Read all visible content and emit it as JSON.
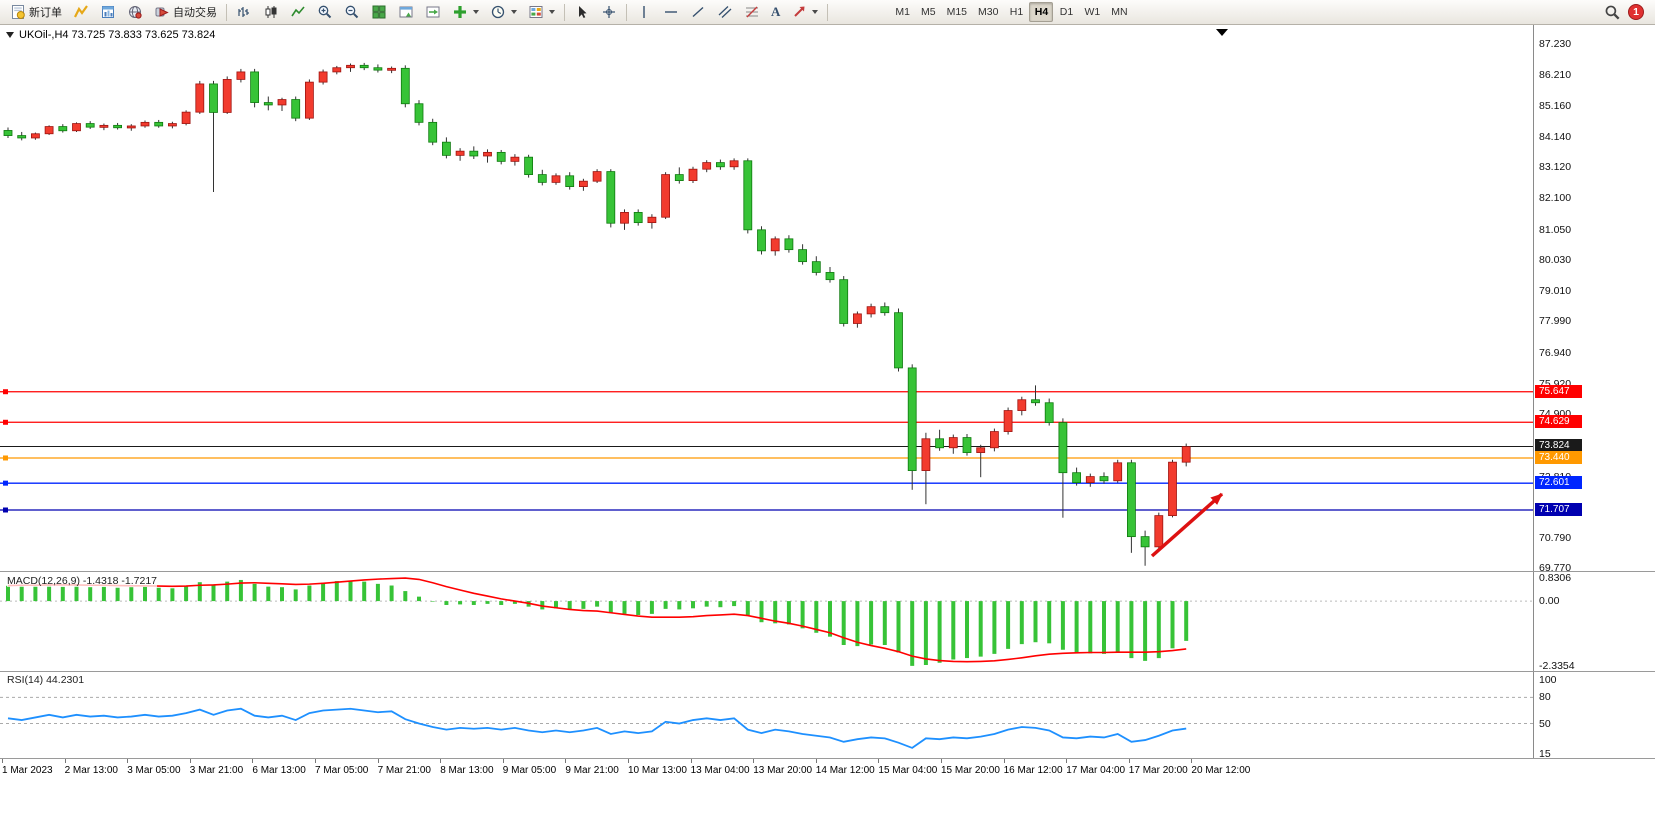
{
  "toolbar": {
    "new_order_label": "新订单",
    "auto_trading_label": "自动交易",
    "text_tool_glyph": "A",
    "timeframes": [
      "M1",
      "M5",
      "M15",
      "M30",
      "H1",
      "H4",
      "D1",
      "W1",
      "MN"
    ],
    "active_timeframe": "H4",
    "notification_count": "1"
  },
  "chart": {
    "ohlc_title": "UKOil-,H4  73.725 73.833 73.625 73.824"
  },
  "chart_data": {
    "type": "candlestick",
    "symbol": "UKOil-",
    "period": "H4",
    "ohlc": {
      "open": 73.725,
      "high": 73.833,
      "low": 73.625,
      "close": 73.824
    },
    "colors": {
      "up_fill": "#f23b2e",
      "up_stroke": "#9e1410",
      "down_fill": "#37c337",
      "down_stroke": "#0e7a0e",
      "wick": "#333333",
      "macd_hist": "#37c337",
      "macd_signal": "#ff0000",
      "rsi_line": "#1e90ff",
      "arrow": "#dd1111"
    },
    "price_axis_labels": [
      "87.230",
      "86.210",
      "85.160",
      "84.140",
      "83.120",
      "82.100",
      "81.050",
      "80.030",
      "79.010",
      "77.990",
      "76.940",
      "75.920",
      "74.900",
      "73.830",
      "72.810",
      "70.790",
      "69.770"
    ],
    "price_lines": [
      {
        "price": 75.647,
        "label": "75.647",
        "color": "#ff0000",
        "current": false
      },
      {
        "price": 74.629,
        "label": "74.629",
        "color": "#ff0000",
        "current": false
      },
      {
        "price": 73.824,
        "label": "73.824",
        "color": "#1a1a1a",
        "current": true
      },
      {
        "price": 73.44,
        "label": "73.440",
        "color": "#ff9900",
        "current": false
      },
      {
        "price": 72.601,
        "label": "72.601",
        "color": "#0026ff",
        "current": false
      },
      {
        "price": 71.707,
        "label": "71.707",
        "color": "#0000b0",
        "current": false
      }
    ],
    "time_axis_labels": [
      "1 Mar 2023",
      "2 Mar 13:00",
      "3 Mar 05:00",
      "3 Mar 21:00",
      "6 Mar 13:00",
      "7 Mar 05:00",
      "7 Mar 21:00",
      "8 Mar 13:00",
      "9 Mar 05:00",
      "9 Mar 21:00",
      "10 Mar 13:00",
      "13 Mar 04:00",
      "13 Mar 20:00",
      "14 Mar 12:00",
      "15 Mar 04:00",
      "15 Mar 20:00",
      "16 Mar 12:00",
      "17 Mar 04:00",
      "17 Mar 20:00",
      "20 Mar 12:00"
    ],
    "candles": [
      [
        84.35,
        84.45,
        84.1,
        84.18
      ],
      [
        84.18,
        84.3,
        84.02,
        84.1
      ],
      [
        84.1,
        84.28,
        84.04,
        84.24
      ],
      [
        84.24,
        84.52,
        84.2,
        84.48
      ],
      [
        84.48,
        84.56,
        84.28,
        84.34
      ],
      [
        84.34,
        84.62,
        84.3,
        84.58
      ],
      [
        84.58,
        84.66,
        84.4,
        84.46
      ],
      [
        84.46,
        84.58,
        84.36,
        84.52
      ],
      [
        84.52,
        84.6,
        84.38,
        84.44
      ],
      [
        84.44,
        84.56,
        84.34,
        84.5
      ],
      [
        84.5,
        84.68,
        84.44,
        84.62
      ],
      [
        84.62,
        84.7,
        84.44,
        84.5
      ],
      [
        84.5,
        84.64,
        84.42,
        84.58
      ],
      [
        84.58,
        85.02,
        84.52,
        84.96
      ],
      [
        84.96,
        86.0,
        84.9,
        85.9
      ],
      [
        85.9,
        86.0,
        82.3,
        84.95
      ],
      [
        84.95,
        86.15,
        84.9,
        86.05
      ],
      [
        86.05,
        86.4,
        85.95,
        86.3
      ],
      [
        86.3,
        86.4,
        85.12,
        85.28
      ],
      [
        85.28,
        85.48,
        85.02,
        85.2
      ],
      [
        85.2,
        85.44,
        85.0,
        85.38
      ],
      [
        85.38,
        85.48,
        84.66,
        84.76
      ],
      [
        84.76,
        86.05,
        84.7,
        85.96
      ],
      [
        85.96,
        86.38,
        85.88,
        86.3
      ],
      [
        86.3,
        86.5,
        86.22,
        86.44
      ],
      [
        86.44,
        86.58,
        86.3,
        86.52
      ],
      [
        86.52,
        86.6,
        86.36,
        86.44
      ],
      [
        86.44,
        86.55,
        86.28,
        86.36
      ],
      [
        86.36,
        86.48,
        86.26,
        86.42
      ],
      [
        86.42,
        86.52,
        85.12,
        85.24
      ],
      [
        85.24,
        85.36,
        84.52,
        84.62
      ],
      [
        84.62,
        84.74,
        83.86,
        83.96
      ],
      [
        83.96,
        84.12,
        83.42,
        83.52
      ],
      [
        83.52,
        83.76,
        83.34,
        83.66
      ],
      [
        83.66,
        83.82,
        83.4,
        83.5
      ],
      [
        83.5,
        83.72,
        83.28,
        83.62
      ],
      [
        83.62,
        83.7,
        83.22,
        83.32
      ],
      [
        83.32,
        83.56,
        83.18,
        83.46
      ],
      [
        83.46,
        83.54,
        82.78,
        82.88
      ],
      [
        82.88,
        83.04,
        82.52,
        82.62
      ],
      [
        82.62,
        82.92,
        82.54,
        82.84
      ],
      [
        82.84,
        82.96,
        82.38,
        82.48
      ],
      [
        82.48,
        82.74,
        82.34,
        82.66
      ],
      [
        82.66,
        83.06,
        82.6,
        82.98
      ],
      [
        82.98,
        83.06,
        81.12,
        81.26
      ],
      [
        81.26,
        81.72,
        81.04,
        81.62
      ],
      [
        81.62,
        81.72,
        81.18,
        81.28
      ],
      [
        81.28,
        81.56,
        81.08,
        81.46
      ],
      [
        81.46,
        82.96,
        81.4,
        82.88
      ],
      [
        82.88,
        83.12,
        82.58,
        82.68
      ],
      [
        82.68,
        83.14,
        82.6,
        83.06
      ],
      [
        83.06,
        83.36,
        82.96,
        83.28
      ],
      [
        83.28,
        83.38,
        83.04,
        83.14
      ],
      [
        83.14,
        83.42,
        83.04,
        83.34
      ],
      [
        83.34,
        83.42,
        80.92,
        81.04
      ],
      [
        81.04,
        81.16,
        80.22,
        80.34
      ],
      [
        80.34,
        80.82,
        80.18,
        80.74
      ],
      [
        80.74,
        80.86,
        80.28,
        80.38
      ],
      [
        80.38,
        80.56,
        79.88,
        79.98
      ],
      [
        79.98,
        80.16,
        79.52,
        79.62
      ],
      [
        79.62,
        79.8,
        79.28,
        79.38
      ],
      [
        79.38,
        79.5,
        77.82,
        77.92
      ],
      [
        77.92,
        78.32,
        77.78,
        78.24
      ],
      [
        78.24,
        78.58,
        78.12,
        78.48
      ],
      [
        78.48,
        78.62,
        78.18,
        78.28
      ],
      [
        78.28,
        78.42,
        76.32,
        76.44
      ],
      [
        76.44,
        76.56,
        72.38,
        73.02
      ],
      [
        73.02,
        74.28,
        71.9,
        74.08
      ],
      [
        74.08,
        74.38,
        73.68,
        73.78
      ],
      [
        73.78,
        74.22,
        73.58,
        74.12
      ],
      [
        74.12,
        74.24,
        73.52,
        73.62
      ],
      [
        73.62,
        73.88,
        72.8,
        73.78
      ],
      [
        73.78,
        74.42,
        73.66,
        74.32
      ],
      [
        74.32,
        75.12,
        74.22,
        75.02
      ],
      [
        75.02,
        75.48,
        74.86,
        75.38
      ],
      [
        75.38,
        75.86,
        75.18,
        75.28
      ],
      [
        75.28,
        75.42,
        74.52,
        74.62
      ],
      [
        74.62,
        74.76,
        71.45,
        72.95
      ],
      [
        72.95,
        73.12,
        72.52,
        72.62
      ],
      [
        72.62,
        72.92,
        72.48,
        72.82
      ],
      [
        72.82,
        72.96,
        72.58,
        72.68
      ],
      [
        72.68,
        73.38,
        72.62,
        73.28
      ],
      [
        73.28,
        73.38,
        70.28,
        70.82
      ],
      [
        70.82,
        71.02,
        69.85,
        70.48
      ],
      [
        70.48,
        71.62,
        70.38,
        71.52
      ],
      [
        71.52,
        73.38,
        71.46,
        73.3
      ],
      [
        73.3,
        73.92,
        73.16,
        73.82
      ]
    ],
    "macd": {
      "label": "MACD(12,26,9) -1.4318 -1.7217",
      "value_main": -1.4318,
      "value_signal": -1.7217,
      "axis_labels": [
        "0.8306",
        "0.00",
        "-2.3354"
      ],
      "scale_max": 0.8306,
      "scale_min": -2.3354,
      "histogram": [
        0.55,
        0.57,
        0.54,
        0.58,
        0.52,
        0.56,
        0.5,
        0.52,
        0.48,
        0.5,
        0.52,
        0.48,
        0.46,
        0.55,
        0.68,
        0.6,
        0.7,
        0.76,
        0.62,
        0.52,
        0.5,
        0.42,
        0.56,
        0.66,
        0.72,
        0.74,
        0.7,
        0.62,
        0.56,
        0.36,
        0.16,
        -0.02,
        -0.14,
        -0.12,
        -0.14,
        -0.1,
        -0.14,
        -0.1,
        -0.2,
        -0.3,
        -0.26,
        -0.32,
        -0.28,
        -0.2,
        -0.42,
        -0.46,
        -0.5,
        -0.46,
        -0.28,
        -0.3,
        -0.26,
        -0.2,
        -0.22,
        -0.18,
        -0.5,
        -0.76,
        -0.8,
        -0.84,
        -0.98,
        -1.14,
        -1.28,
        -1.58,
        -1.62,
        -1.56,
        -1.58,
        -1.85,
        -2.33,
        -2.3,
        -2.22,
        -2.1,
        -2.05,
        -2.0,
        -1.9,
        -1.72,
        -1.55,
        -1.48,
        -1.52,
        -1.75,
        -1.85,
        -1.88,
        -1.9,
        -1.86,
        -2.05,
        -2.15,
        -2.05,
        -1.7,
        -1.4318
      ],
      "signal": [
        0.56,
        0.57,
        0.57,
        0.58,
        0.58,
        0.58,
        0.57,
        0.57,
        0.56,
        0.55,
        0.55,
        0.54,
        0.53,
        0.54,
        0.57,
        0.58,
        0.61,
        0.65,
        0.66,
        0.64,
        0.62,
        0.6,
        0.61,
        0.64,
        0.68,
        0.72,
        0.76,
        0.79,
        0.81,
        0.83,
        0.78,
        0.66,
        0.52,
        0.4,
        0.28,
        0.18,
        0.08,
        0.0,
        -0.08,
        -0.18,
        -0.24,
        -0.3,
        -0.34,
        -0.36,
        -0.42,
        -0.48,
        -0.54,
        -0.58,
        -0.58,
        -0.58,
        -0.56,
        -0.52,
        -0.5,
        -0.47,
        -0.52,
        -0.62,
        -0.72,
        -0.8,
        -0.9,
        -1.02,
        -1.14,
        -1.32,
        -1.48,
        -1.6,
        -1.7,
        -1.82,
        -1.98,
        -2.08,
        -2.14,
        -2.17,
        -2.18,
        -2.17,
        -2.15,
        -2.1,
        -2.04,
        -1.97,
        -1.91,
        -1.88,
        -1.86,
        -1.85,
        -1.85,
        -1.84,
        -1.84,
        -1.84,
        -1.82,
        -1.78,
        -1.7217
      ]
    },
    "rsi": {
      "label": "RSI(14) 44.2301",
      "value": 44.2301,
      "axis_labels": [
        "100",
        "80",
        "50",
        "15"
      ],
      "levels": [
        80,
        50
      ],
      "values": [
        56,
        54,
        57,
        60,
        57,
        60,
        58,
        59,
        57,
        58,
        60,
        58,
        59,
        62,
        66,
        60,
        65,
        67,
        59,
        57,
        59,
        54,
        62,
        65,
        66,
        67,
        65,
        63,
        64,
        55,
        50,
        46,
        43,
        45,
        44,
        45,
        43,
        45,
        42,
        40,
        42,
        40,
        42,
        45,
        38,
        41,
        39,
        41,
        52,
        50,
        54,
        56,
        54,
        56,
        43,
        39,
        43,
        41,
        38,
        36,
        34,
        29,
        32,
        34,
        33,
        28,
        22,
        33,
        32,
        34,
        33,
        35,
        38,
        43,
        46,
        45,
        42,
        34,
        33,
        35,
        34,
        38,
        29,
        31,
        36,
        42,
        44.23
      ]
    }
  }
}
